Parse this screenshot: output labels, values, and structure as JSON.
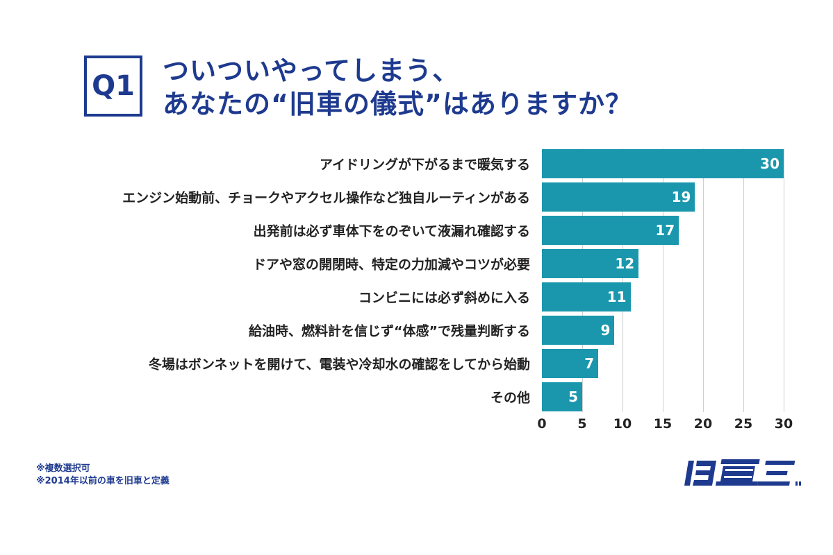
{
  "question_badge": "Q1",
  "title_lines": [
    "ついついやってしまう、",
    "あなたの“旧車の儀式”はありますか？"
  ],
  "chart_data": {
    "type": "bar",
    "orientation": "horizontal",
    "categories": [
      "アイドリングが下がるまで暖気する",
      "エンジン始動前、チョークやアクセル操作など独自ルーティンがある",
      "出発前は必ず車体下をのぞいて液漏れ確認する",
      "ドアや窓の開閉時、特定の力加減やコツが必要",
      "コンビニには必ず斜めに入る",
      "給油時、燃料計を信じず“体感”で残量判断する",
      "冬場はボンネットを開けて、電装や冷却水の確認をしてから始動",
      "その他"
    ],
    "values": [
      30,
      19,
      17,
      12,
      11,
      9,
      7,
      5
    ],
    "xlim": [
      0,
      30
    ],
    "xticks": [
      0,
      5,
      10,
      15,
      20,
      25,
      30
    ],
    "grid": true,
    "bar_color": "#1a97ad"
  },
  "notes": [
    "※複数選択可",
    "※2014年以前の車を旧車と定義"
  ],
  "logo_text": "旧車王",
  "colors": {
    "title": "#1e3a8f",
    "bar": "#1a97ad"
  }
}
